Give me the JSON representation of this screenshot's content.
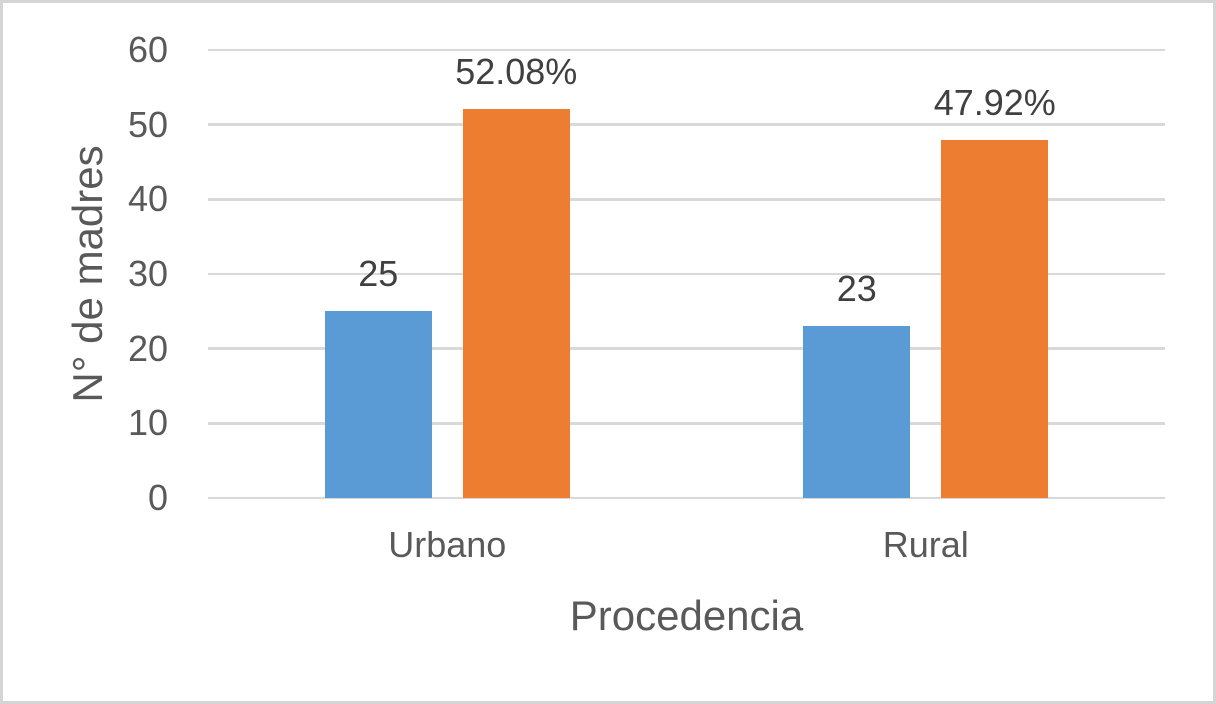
{
  "chart_data": {
    "type": "bar",
    "title": "",
    "categories": [
      "Urbano",
      "Rural"
    ],
    "series": [
      {
        "color": "#5B9BD5",
        "values": [
          25,
          23
        ],
        "labels": [
          "25",
          "23"
        ]
      },
      {
        "color": "#ED7D31",
        "values": [
          52.08,
          47.92
        ],
        "labels": [
          "52.08%",
          "47.92%"
        ]
      }
    ],
    "xlabel": "Procedencia",
    "ylabel": "N° de madres",
    "ylim": [
      0,
      60
    ],
    "yticks": [
      0,
      10,
      20,
      30,
      40,
      50,
      60
    ],
    "grid": "horizontal",
    "legend": "none"
  },
  "colors": {
    "bar_blue": "#5B9BD5",
    "bar_orange": "#ED7D31",
    "gridline": "#D9D9D9",
    "tick_text": "#595959",
    "data_label_text": "#404040",
    "frame_border": "#D5D5D5",
    "background": "#FFFFFF"
  }
}
